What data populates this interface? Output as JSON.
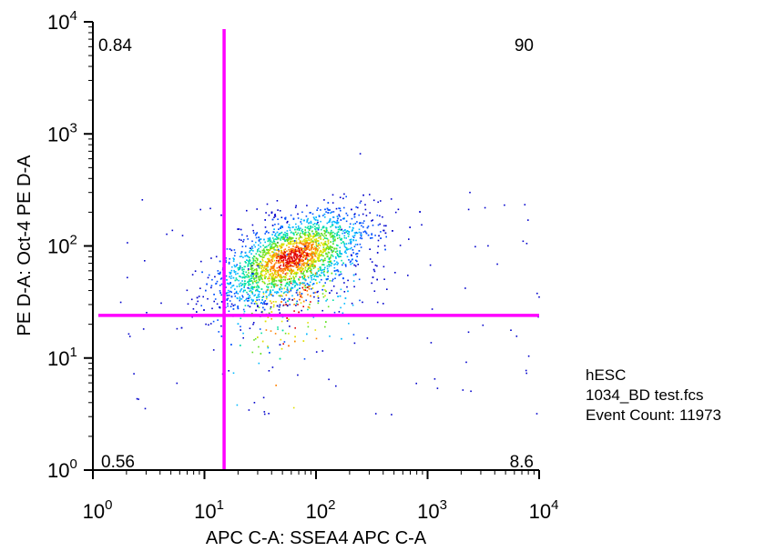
{
  "chart_data": {
    "type": "scatter",
    "subtype": "flow-cytometry-density-dot-plot",
    "xlabel": "APC C-A: SSEA4 APC C-A",
    "ylabel": "PE D-A: Oct-4 PE D-A",
    "xscale": "log",
    "yscale": "log",
    "xlim": [
      1,
      10000
    ],
    "ylim": [
      1,
      10000
    ],
    "x_ticks": [
      {
        "value": 1,
        "base": "10",
        "exp": "0"
      },
      {
        "value": 10,
        "base": "10",
        "exp": "1"
      },
      {
        "value": 100,
        "base": "10",
        "exp": "2"
      },
      {
        "value": 1000,
        "base": "10",
        "exp": "3"
      },
      {
        "value": 10000,
        "base": "10",
        "exp": "4"
      }
    ],
    "y_ticks": [
      {
        "value": 1,
        "base": "10",
        "exp": "0"
      },
      {
        "value": 10,
        "base": "10",
        "exp": "1"
      },
      {
        "value": 100,
        "base": "10",
        "exp": "2"
      },
      {
        "value": 1000,
        "base": "10",
        "exp": "3"
      },
      {
        "value": 10000,
        "base": "10",
        "exp": "4"
      }
    ],
    "quadrant_gate": {
      "x": 15,
      "y": 24,
      "color": "#ff00ff"
    },
    "quadrant_percentages": {
      "upper_left": "0.84",
      "upper_right": "90",
      "lower_left": "0.56",
      "lower_right": "8.6"
    },
    "population": {
      "center_x": 60,
      "center_y": 80,
      "spread_x_log": 0.32,
      "spread_y_log": 0.2,
      "correlation": 0.55,
      "event_count": 11973
    },
    "density_colors": [
      "#0000cc",
      "#0050ff",
      "#00b8ff",
      "#00e0a0",
      "#60e020",
      "#e0e000",
      "#ff8000",
      "#e00000"
    ],
    "grid": false,
    "legend": "none"
  },
  "sample_info": {
    "name": "hESC",
    "file": "1034_BD test.fcs",
    "event_count_label": "Event Count: 11973"
  }
}
